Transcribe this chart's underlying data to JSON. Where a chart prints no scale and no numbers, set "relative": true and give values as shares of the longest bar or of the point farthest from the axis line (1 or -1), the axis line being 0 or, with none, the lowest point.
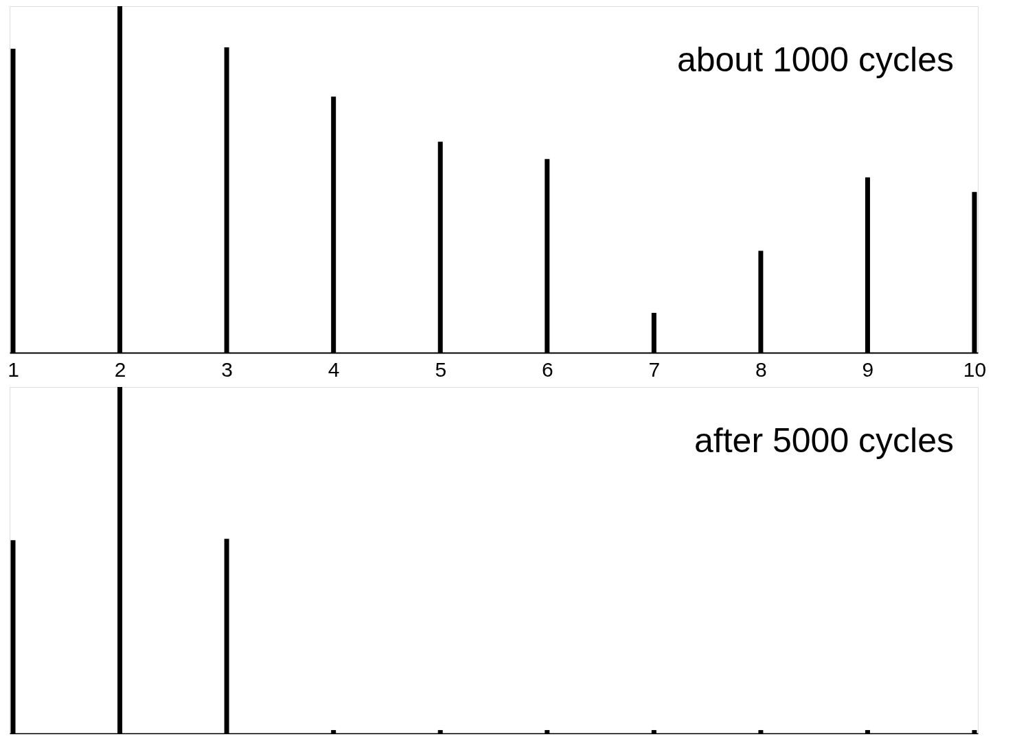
{
  "chart_data": [
    {
      "type": "bar",
      "relative": true,
      "x": [
        1,
        2,
        3,
        4,
        5,
        6,
        7,
        8,
        9,
        10
      ],
      "xlim": [
        1,
        10
      ],
      "xticks": [
        1,
        2,
        3,
        4,
        5,
        6,
        7,
        8,
        9,
        10
      ],
      "color": "#000000",
      "values": [
        0.877,
        1,
        0.881,
        0.739,
        0.609,
        0.559,
        0.115,
        0.294,
        0.506,
        0.464
      ],
      "annotations": [
        "about 1000 cycles"
      ],
      "grid": false
    },
    {
      "type": "bar",
      "relative": true,
      "x": [
        1,
        2,
        3,
        4,
        5,
        6,
        7,
        8,
        9,
        10
      ],
      "xlim": [
        1,
        10
      ],
      "xticks": [
        1,
        2,
        3,
        4,
        5,
        6,
        7,
        8,
        9,
        10
      ],
      "color": "#000000",
      "values": [
        0.558,
        1,
        0.562,
        0.01,
        0.01,
        0.01,
        0.01,
        0.01,
        0.01,
        0.01
      ],
      "annotations": [
        "after 5000 cycles"
      ],
      "tick_labels": false,
      "grid": false
    }
  ]
}
